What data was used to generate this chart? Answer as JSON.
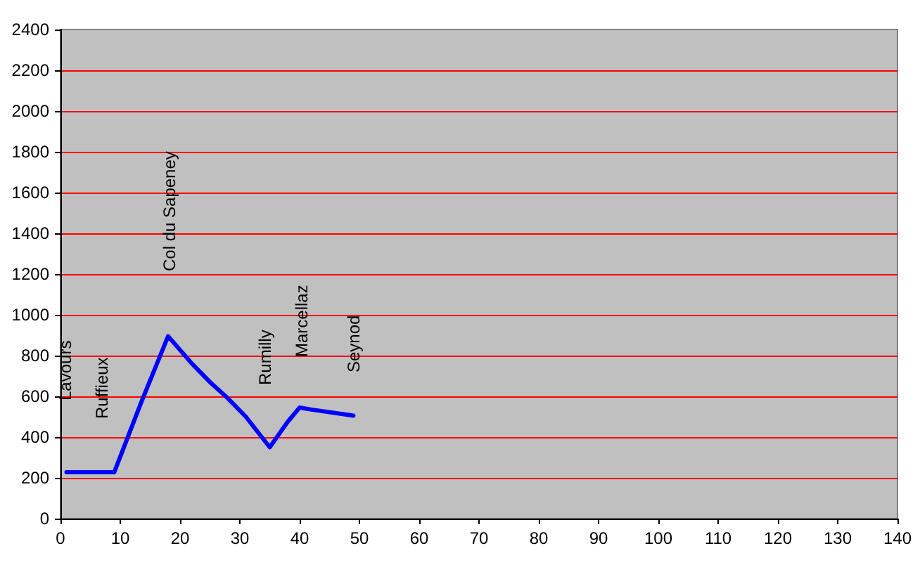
{
  "chart_data": {
    "type": "line",
    "x": [
      1,
      9,
      13.5,
      18,
      22,
      25,
      28,
      31,
      35,
      38,
      40,
      42,
      49
    ],
    "values": [
      228,
      228,
      570,
      895,
      760,
      670,
      590,
      500,
      350,
      475,
      545,
      535,
      505
    ],
    "color": "#0000ff",
    "line_style": "solid",
    "xlim": [
      0,
      140
    ],
    "xticks": [
      0,
      10,
      20,
      30,
      40,
      50,
      60,
      70,
      80,
      90,
      100,
      110,
      120,
      130,
      140
    ],
    "ylim": [
      0,
      2400
    ],
    "yticks": [
      0,
      200,
      400,
      600,
      800,
      1000,
      1200,
      1400,
      1600,
      1800,
      2000,
      2200,
      2400
    ],
    "grid": "y",
    "annotations": [
      "Lavours",
      "Ruffieux",
      "Col du Sapeney",
      "Rumilly",
      "Marcellaz",
      "Seynod"
    ]
  }
}
